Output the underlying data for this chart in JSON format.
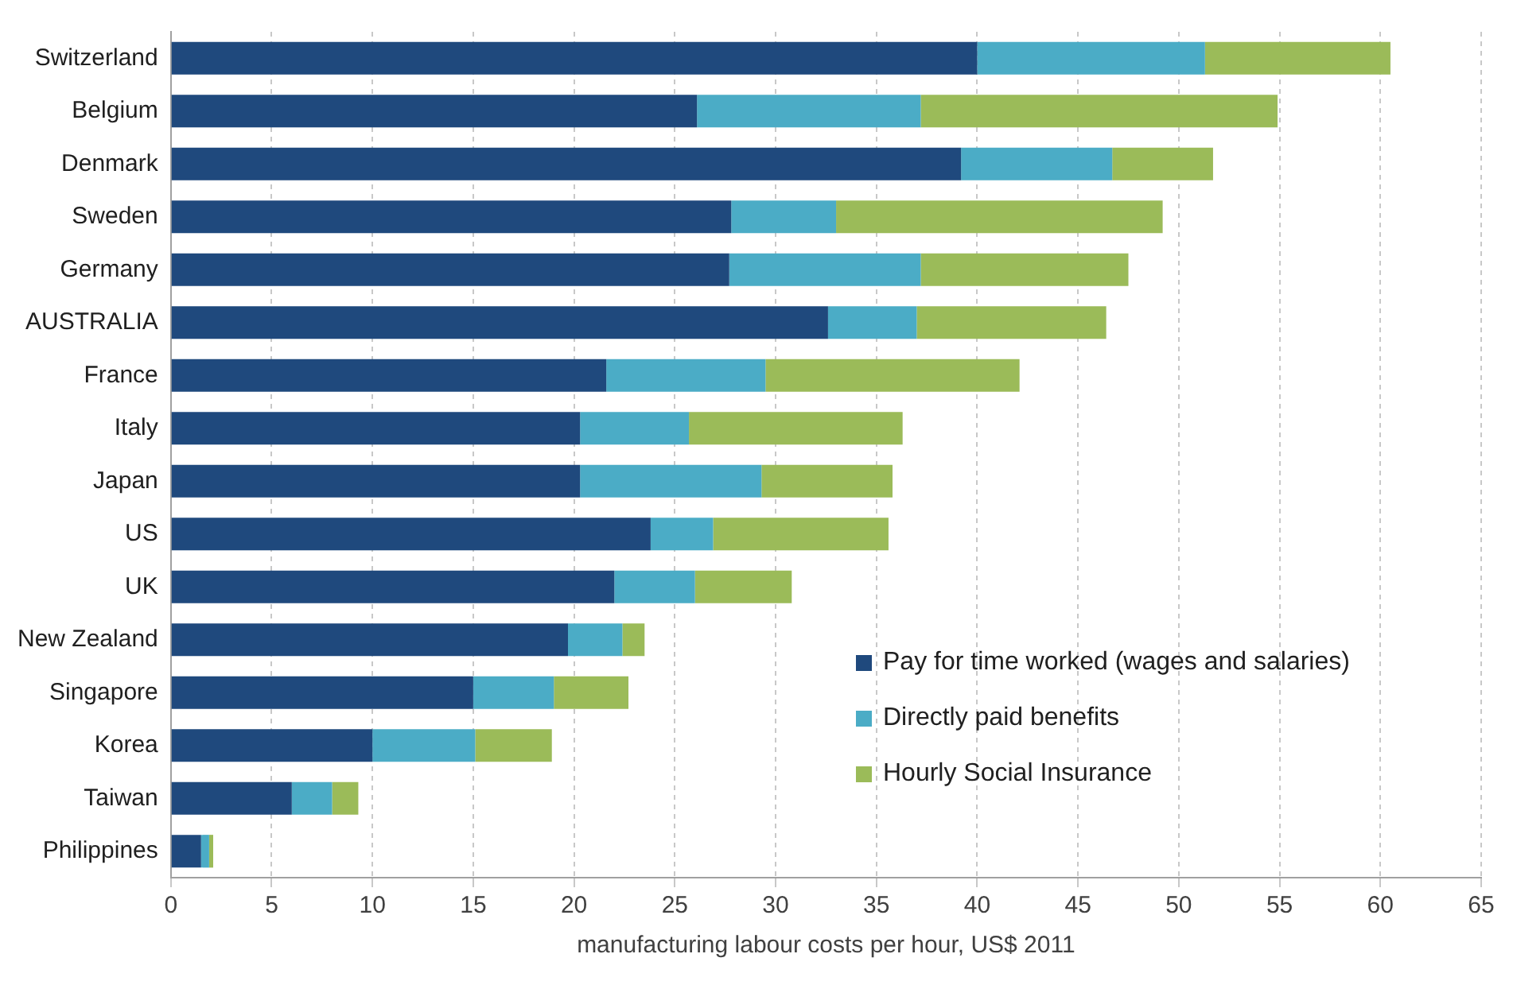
{
  "chart_data": {
    "type": "bar",
    "orientation": "horizontal",
    "stacked": true,
    "xlabel": "manufacturing labour costs per hour, US$ 2011",
    "categories": [
      "Switzerland",
      "Belgium",
      "Denmark",
      "Sweden",
      "Germany",
      "AUSTRALIA",
      "France",
      "Italy",
      "Japan",
      "US",
      "UK",
      "New Zealand",
      "Singapore",
      "Korea",
      "Taiwan",
      "Philippines"
    ],
    "series": [
      {
        "name": "Pay for time worked (wages and salaries)",
        "color": "#1f497d",
        "values": [
          40,
          26.1,
          39.2,
          27.8,
          27.7,
          32.6,
          21.6,
          20.3,
          20.3,
          23.8,
          22.0,
          19.7,
          15.0,
          10.0,
          6.0,
          1.5
        ]
      },
      {
        "name": "Directly paid benefits",
        "color": "#4bacc6",
        "values": [
          11.3,
          11.1,
          7.5,
          5.2,
          9.5,
          4.4,
          7.9,
          5.4,
          9.0,
          3.1,
          4.0,
          2.7,
          4.0,
          5.1,
          2.0,
          0.4
        ]
      },
      {
        "name": "Hourly Social Insurance",
        "color": "#9bbb59",
        "values": [
          9.2,
          17.7,
          5.0,
          16.2,
          10.3,
          9.4,
          12.6,
          10.6,
          6.5,
          8.7,
          4.8,
          1.1,
          3.7,
          3.8,
          1.3,
          0.2
        ]
      }
    ],
    "xlim": [
      0,
      65
    ],
    "xticks": [
      0,
      5,
      10,
      15,
      20,
      25,
      30,
      35,
      40,
      45,
      50,
      55,
      60,
      65
    ],
    "grid": "x",
    "legend": "bottom right"
  }
}
